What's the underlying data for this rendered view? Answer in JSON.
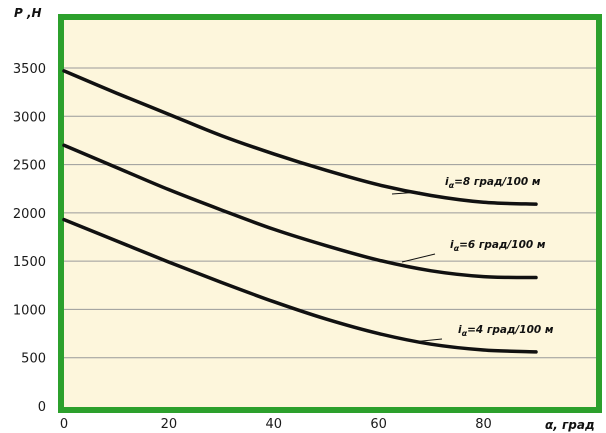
{
  "chart_data": {
    "type": "line",
    "title": "",
    "xlabel": "α, град",
    "ylabel": "P ,H",
    "xlim": [
      0,
      90
    ],
    "ylim": [
      0,
      3600
    ],
    "x_ticks": [
      "0",
      "20",
      "40",
      "60",
      "80"
    ],
    "y_ticks": [
      "0",
      "500",
      "1000",
      "1500",
      "2000",
      "2500",
      "3000",
      "3500"
    ],
    "grid": "horizontal",
    "colors": {
      "frame": "#2ca02c",
      "plot_background": "#fdf6dc",
      "gridline": "#9a9a9a",
      "line": "#111111"
    },
    "series": [
      {
        "name_prefix": "i",
        "name_subscript": "α",
        "name_suffix": "=8 град/100 м",
        "x": [
          0,
          10,
          20,
          30,
          40,
          50,
          60,
          70,
          80,
          90
        ],
        "values": [
          3470,
          3240,
          3020,
          2800,
          2610,
          2440,
          2290,
          2180,
          2110,
          2090
        ]
      },
      {
        "name_prefix": "i",
        "name_subscript": "α",
        "name_suffix": "=6 град/100 м",
        "x": [
          0,
          10,
          20,
          30,
          40,
          50,
          60,
          70,
          80,
          90
        ],
        "values": [
          2700,
          2470,
          2240,
          2030,
          1830,
          1660,
          1510,
          1400,
          1340,
          1330
        ]
      },
      {
        "name_prefix": "i",
        "name_subscript": "α",
        "name_suffix": "=4 град/100 м",
        "x": [
          0,
          10,
          20,
          30,
          40,
          50,
          60,
          70,
          80,
          90
        ],
        "values": [
          1930,
          1710,
          1490,
          1280,
          1080,
          900,
          750,
          640,
          580,
          560
        ]
      }
    ]
  }
}
